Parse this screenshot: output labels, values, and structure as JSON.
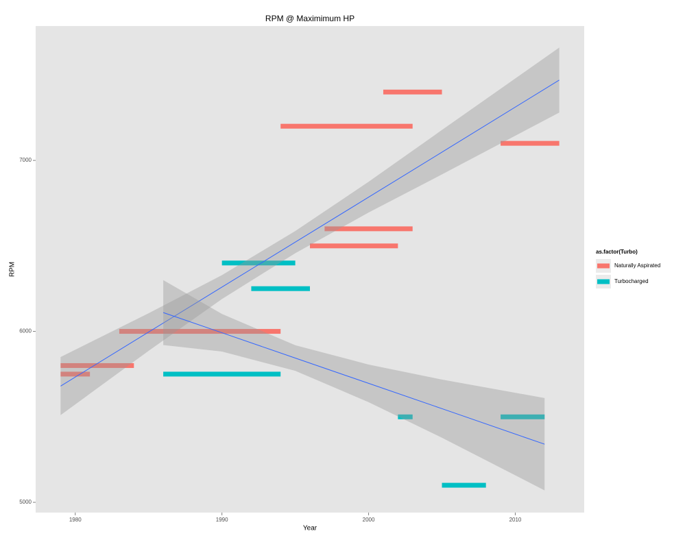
{
  "chart_data": {
    "type": "segment",
    "title": "RPM @ Maximimum HP",
    "x_label": "Year",
    "y_label": "RPM",
    "legend_title": "as.factor(Turbo)",
    "xlim": [
      1977.3,
      2014.7
    ],
    "ylim": [
      4940,
      7786
    ],
    "xticks": [
      1980,
      1990,
      2000,
      2010
    ],
    "yticks": [
      5000,
      6000,
      7000
    ],
    "grid": false,
    "series": [
      {
        "name": "Naturally Aspirated",
        "color": "#F8766D",
        "x_start": [
          1979,
          1979,
          1983,
          1994,
          2001,
          1997,
          1996,
          2009
        ],
        "x_end": [
          1981,
          1984,
          1994,
          2003,
          2005,
          2003,
          2002,
          2013
        ],
        "values": [
          5750,
          5800,
          6000,
          7200,
          7400,
          6600,
          6500,
          7100
        ]
      },
      {
        "name": "Turbocharged",
        "color": "#00BFC4",
        "x_start": [
          1990,
          1992,
          1986,
          2002,
          2009,
          2005
        ],
        "x_end": [
          1995,
          1996,
          1994,
          2003,
          2012,
          2008
        ],
        "values": [
          6400,
          6250,
          5750,
          5500,
          5500,
          5100
        ]
      }
    ],
    "fits": [
      {
        "color": "#3366FF",
        "x": [
          1979,
          1985,
          1990,
          1995,
          2000,
          2005,
          2013
        ],
        "values": [
          5680,
          5996,
          6259,
          6522,
          6785,
          7048,
          7470
        ],
        "lower": [
          5510,
          5886,
          6189,
          6457,
          6695,
          6918,
          7280
        ],
        "upper": [
          5850,
          6106,
          6329,
          6587,
          6875,
          7178,
          7660
        ]
      },
      {
        "color": "#3366FF",
        "x": [
          1986,
          1990,
          1995,
          2000,
          2005,
          2012
        ],
        "values": [
          6110,
          5992,
          5844,
          5696,
          5548,
          5340
        ],
        "lower": [
          5920,
          5882,
          5769,
          5586,
          5378,
          5070
        ],
        "upper": [
          6300,
          6102,
          5919,
          5806,
          5718,
          5610
        ]
      }
    ]
  }
}
